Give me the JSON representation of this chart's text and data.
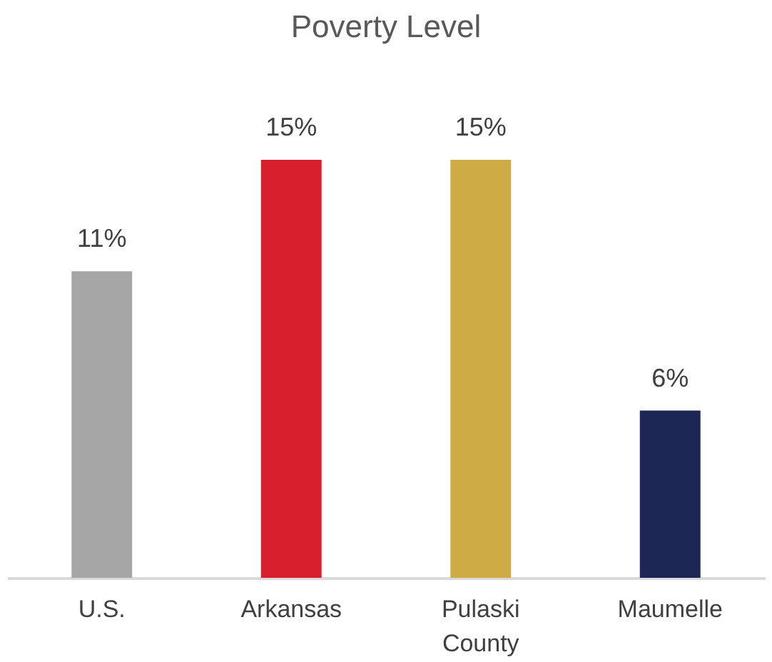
{
  "chart_data": {
    "type": "bar",
    "title": "Poverty Level",
    "categories": [
      "U.S.",
      "Arkansas",
      "Pulaski County",
      "Maumelle"
    ],
    "values": [
      11,
      15,
      15,
      6
    ],
    "value_labels": [
      "11%",
      "15%",
      "15%",
      "6%"
    ],
    "colors": [
      "#a6a6a6",
      "#d71f2e",
      "#cfab45",
      "#1c2755"
    ],
    "grid": false
  }
}
